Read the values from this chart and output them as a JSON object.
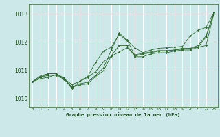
{
  "bg_color": "#cce8e8",
  "grid_color": "#ffffff",
  "line_color": "#2d6a2d",
  "marker_color": "#2d6a2d",
  "xlabel": "Graphe pression niveau de la mer (hPa)",
  "xlabel_color": "#1a4a1a",
  "tick_color": "#1a4a1a",
  "xlim": [
    -0.5,
    23.5
  ],
  "ylim": [
    1009.7,
    1013.35
  ],
  "yticks": [
    1010,
    1011,
    1012,
    1013
  ],
  "xticks": [
    0,
    1,
    2,
    3,
    4,
    5,
    6,
    7,
    8,
    9,
    10,
    11,
    12,
    13,
    14,
    15,
    16,
    17,
    18,
    19,
    20,
    21,
    22,
    23
  ],
  "series": [
    [
      1010.6,
      1010.7,
      1010.75,
      1010.85,
      1010.7,
      1010.5,
      1010.6,
      1010.75,
      1010.95,
      1011.3,
      1011.5,
      1011.65,
      1011.8,
      1011.55,
      1011.6,
      1011.65,
      1011.7,
      1011.7,
      1011.72,
      1011.75,
      1011.78,
      1011.82,
      1011.88,
      1013.0
    ],
    [
      1010.6,
      1010.8,
      1010.88,
      1010.88,
      1010.72,
      1010.35,
      1010.62,
      1010.78,
      1011.28,
      1011.68,
      1011.82,
      1012.28,
      1012.05,
      1011.8,
      1011.62,
      1011.72,
      1011.78,
      1011.8,
      1011.82,
      1011.85,
      1012.22,
      1012.42,
      1012.52,
      1013.05
    ],
    [
      1010.6,
      1010.75,
      1010.88,
      1010.88,
      1010.72,
      1010.4,
      1010.52,
      1010.58,
      1010.82,
      1011.08,
      1011.72,
      1012.32,
      1012.08,
      1011.5,
      1011.58,
      1011.62,
      1011.68,
      1011.68,
      1011.72,
      1011.78,
      1011.78,
      1011.88,
      1012.22,
      1013.05
    ],
    [
      1010.6,
      1010.75,
      1010.82,
      1010.82,
      1010.68,
      1010.4,
      1010.48,
      1010.52,
      1010.78,
      1010.98,
      1011.52,
      1011.88,
      1011.88,
      1011.48,
      1011.48,
      1011.58,
      1011.62,
      1011.62,
      1011.68,
      1011.72,
      1011.72,
      1011.82,
      1012.18,
      1013.0
    ]
  ]
}
